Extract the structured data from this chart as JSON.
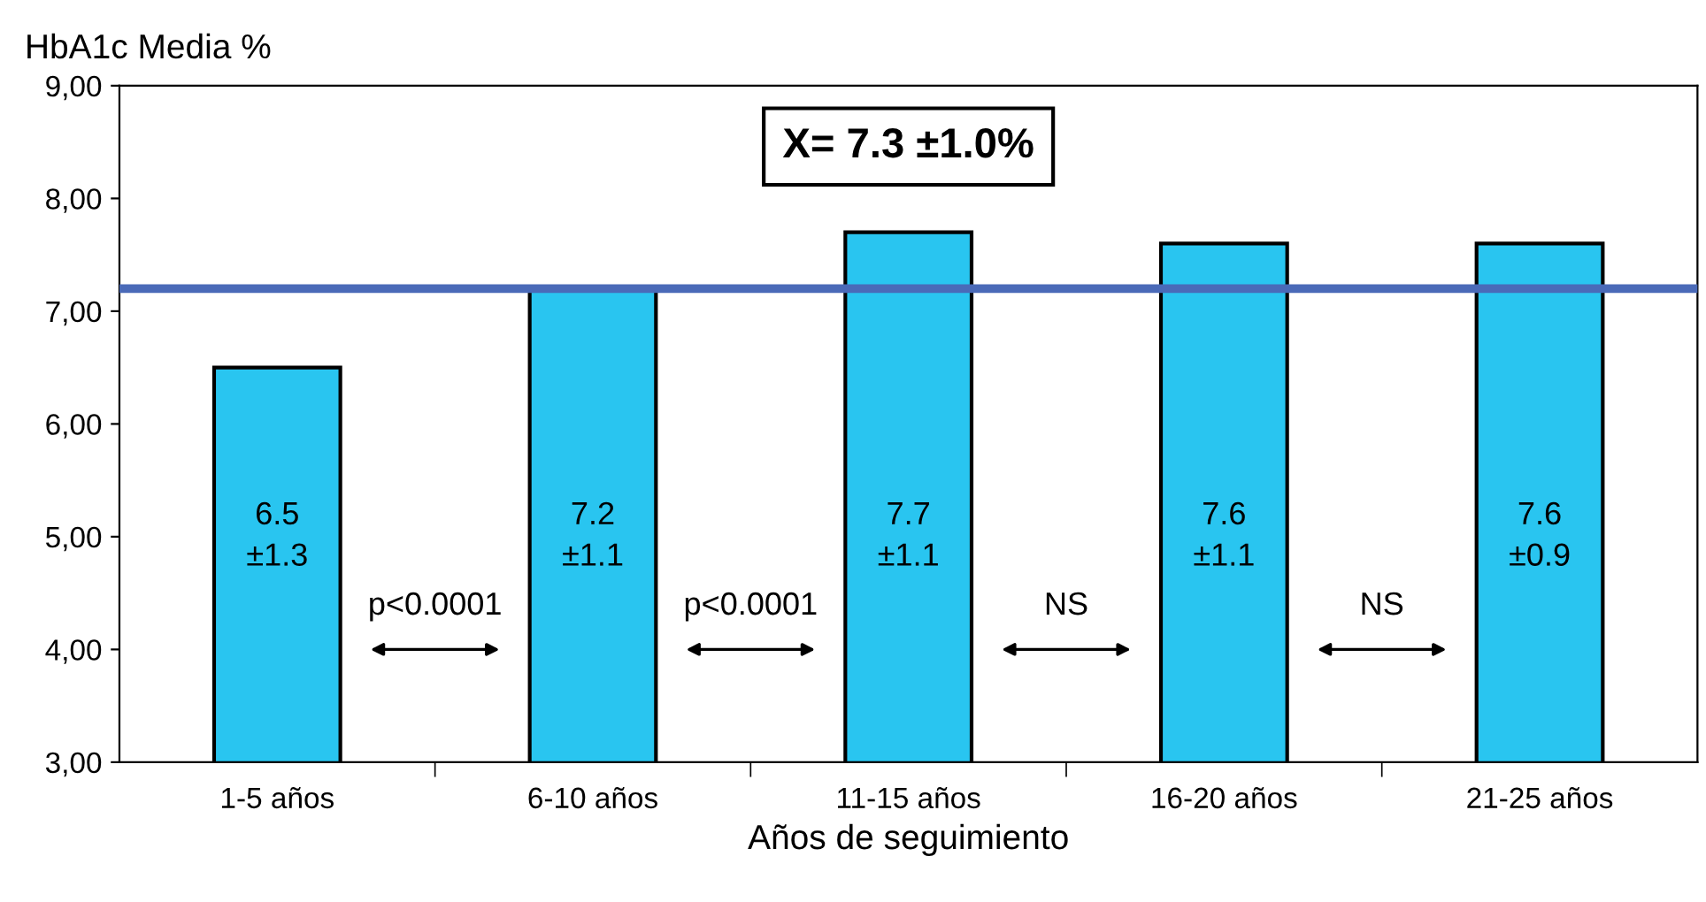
{
  "chart_data": {
    "type": "bar",
    "ylabel": "HbA1c Media %",
    "xlabel": "Años de seguimiento",
    "categories": [
      "1-5 años",
      "6-10 años",
      "11-15 años",
      "16-20 años",
      "21-25 años"
    ],
    "values": [
      6.5,
      7.2,
      7.7,
      7.6,
      7.6
    ],
    "value_labels": [
      "6.5\n±1.3",
      "7.2\n±1.1",
      "7.7\n±1.1",
      "7.6\n±1.1",
      "7.6\n±0.9"
    ],
    "color": "#29c5f0",
    "ylim": [
      3,
      9
    ],
    "yticks": [
      {
        "value": 3,
        "label": "3,00"
      },
      {
        "value": 4,
        "label": "4,00"
      },
      {
        "value": 5,
        "label": "5,00"
      },
      {
        "value": 6,
        "label": "6,00"
      },
      {
        "value": 7,
        "label": "7,00"
      },
      {
        "value": 8,
        "label": "8,00"
      },
      {
        "value": 9,
        "label": "9,00"
      }
    ],
    "ref_lines": [
      {
        "axis": "y",
        "value": 7.2,
        "color": "#4a6ab8"
      }
    ],
    "annotations": [
      "X= 7.3 ±1.0%",
      "p<0.0001",
      "p<0.0001",
      "NS",
      "NS"
    ],
    "grid": false
  }
}
